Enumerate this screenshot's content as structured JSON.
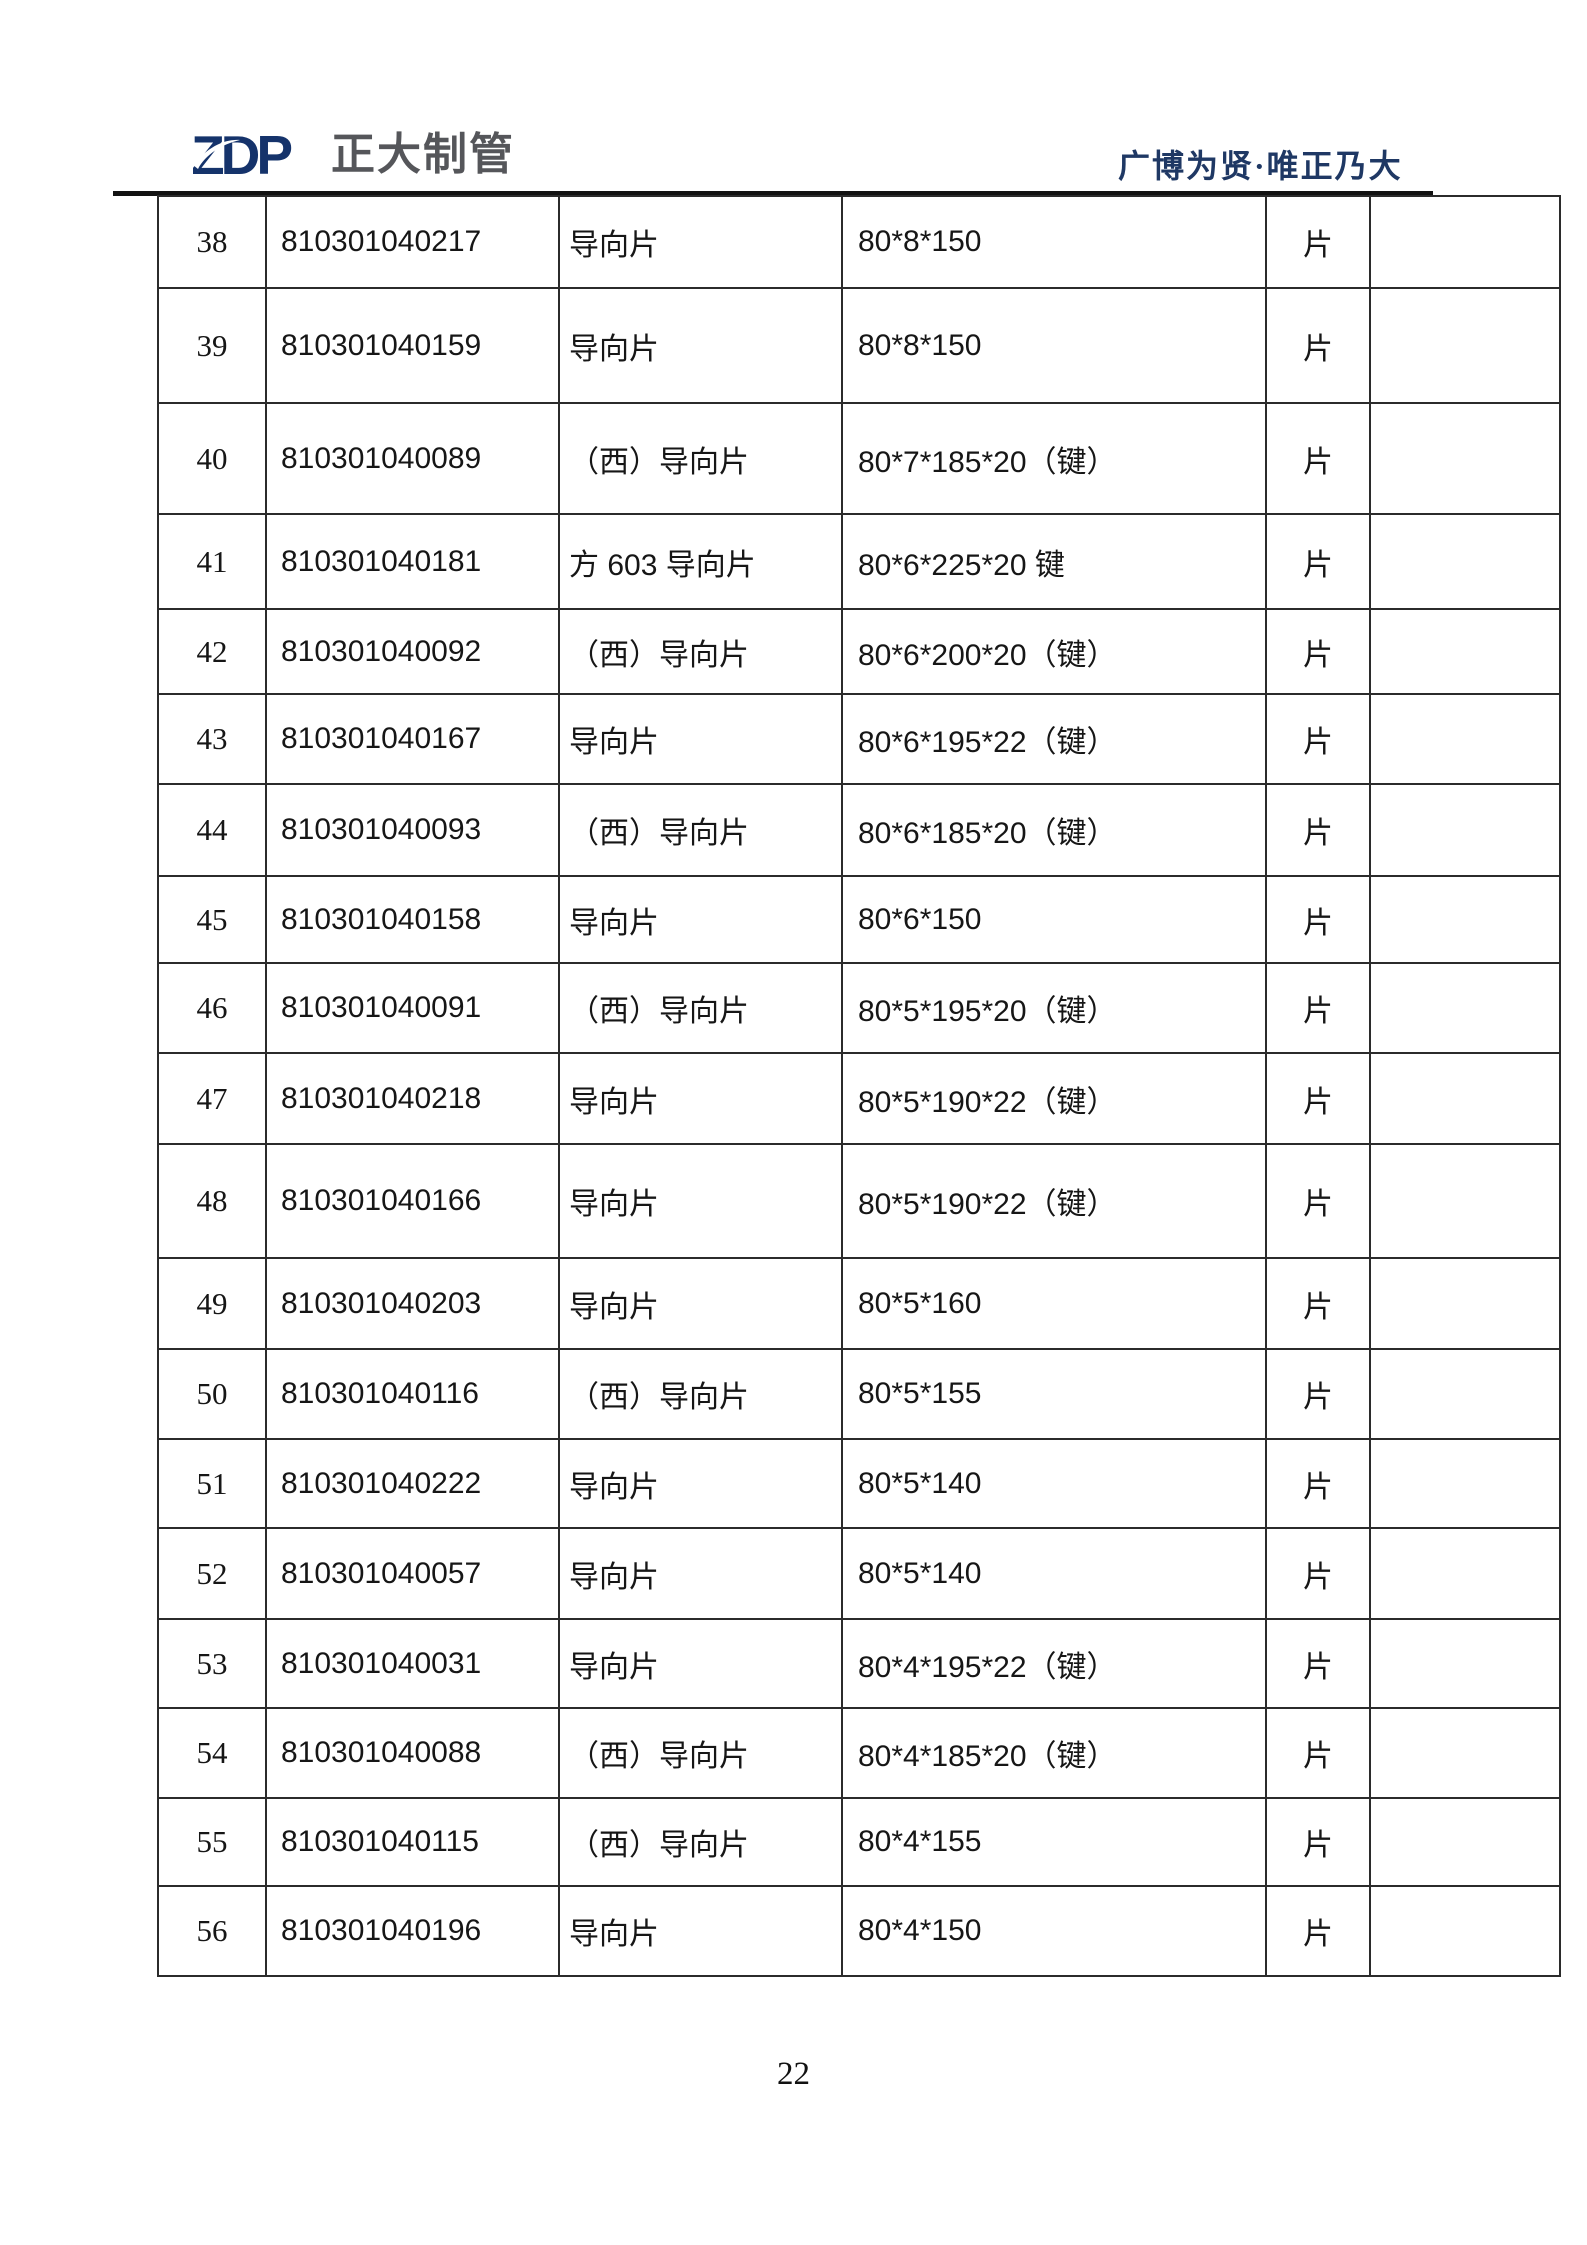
{
  "header": {
    "logo_text": "ZDP",
    "company_name": "正大制管",
    "slogan": "广博为贤·唯正乃大"
  },
  "colors": {
    "logo_navy": "#15336b",
    "company_gray": "#55565a",
    "slogan_blue": "#1f3864",
    "table_border": "#2b2b2b"
  },
  "table": {
    "rows": [
      {
        "no": "38",
        "code": "810301040217",
        "name": "导向片",
        "spec": "80*8*150",
        "unit": "片",
        "note": ""
      },
      {
        "no": "39",
        "code": "810301040159",
        "name": "导向片",
        "spec": "80*8*150",
        "unit": "片",
        "note": ""
      },
      {
        "no": "40",
        "code": "810301040089",
        "name": "（西）导向片",
        "spec": "80*7*185*20（键）",
        "unit": "片",
        "note": ""
      },
      {
        "no": "41",
        "code": "810301040181",
        "name": "方 603 导向片",
        "spec": "80*6*225*20 键",
        "unit": "片",
        "note": ""
      },
      {
        "no": "42",
        "code": "810301040092",
        "name": "（西）导向片",
        "spec": "80*6*200*20（键）",
        "unit": "片",
        "note": ""
      },
      {
        "no": "43",
        "code": "810301040167",
        "name": "导向片",
        "spec": "80*6*195*22（键）",
        "unit": "片",
        "note": ""
      },
      {
        "no": "44",
        "code": "810301040093",
        "name": "（西）导向片",
        "spec": "80*6*185*20（键）",
        "unit": "片",
        "note": ""
      },
      {
        "no": "45",
        "code": "810301040158",
        "name": "导向片",
        "spec": "80*6*150",
        "unit": "片",
        "note": ""
      },
      {
        "no": "46",
        "code": "810301040091",
        "name": "（西）导向片",
        "spec": "80*5*195*20（键）",
        "unit": "片",
        "note": ""
      },
      {
        "no": "47",
        "code": "810301040218",
        "name": "导向片",
        "spec": "80*5*190*22（键）",
        "unit": "片",
        "note": ""
      },
      {
        "no": "48",
        "code": "810301040166",
        "name": "导向片",
        "spec": "80*5*190*22（键）",
        "unit": "片",
        "note": ""
      },
      {
        "no": "49",
        "code": "810301040203",
        "name": "导向片",
        "spec": "80*5*160",
        "unit": "片",
        "note": ""
      },
      {
        "no": "50",
        "code": "810301040116",
        "name": "（西）导向片",
        "spec": "80*5*155",
        "unit": "片",
        "note": ""
      },
      {
        "no": "51",
        "code": "810301040222",
        "name": "导向片",
        "spec": "80*5*140",
        "unit": "片",
        "note": ""
      },
      {
        "no": "52",
        "code": "810301040057",
        "name": "导向片",
        "spec": "80*5*140",
        "unit": "片",
        "note": ""
      },
      {
        "no": "53",
        "code": "810301040031",
        "name": "导向片",
        "spec": "80*4*195*22（键）",
        "unit": "片",
        "note": ""
      },
      {
        "no": "54",
        "code": "810301040088",
        "name": "（西）导向片",
        "spec": "80*4*185*20（键）",
        "unit": "片",
        "note": ""
      },
      {
        "no": "55",
        "code": "810301040115",
        "name": "（西）导向片",
        "spec": "80*4*155",
        "unit": "片",
        "note": ""
      },
      {
        "no": "56",
        "code": "810301040196",
        "name": "导向片",
        "spec": "80*4*150",
        "unit": "片",
        "note": ""
      }
    ]
  },
  "footer": {
    "page_number": "22"
  }
}
